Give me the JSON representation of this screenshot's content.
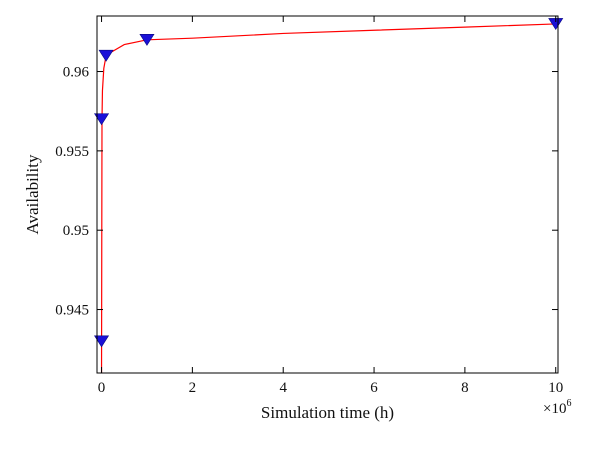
{
  "chart_data": {
    "type": "line",
    "title": "",
    "xlabel": "Simulation time (h)",
    "ylabel": "Availability",
    "x_multiplier": {
      "base": "×10",
      "exponent": "6"
    },
    "xlim": [
      -0.1,
      10.05
    ],
    "ylim": [
      0.941,
      0.9635
    ],
    "x_ticks": [
      {
        "value": 0,
        "label": "0"
      },
      {
        "value": 2,
        "label": "2"
      },
      {
        "value": 4,
        "label": "4"
      },
      {
        "value": 6,
        "label": "6"
      },
      {
        "value": 8,
        "label": "8"
      },
      {
        "value": 10,
        "label": "10"
      }
    ],
    "y_ticks": [
      {
        "value": 0.945,
        "label": "0.945"
      },
      {
        "value": 0.95,
        "label": "0.95"
      },
      {
        "value": 0.955,
        "label": "0.955"
      },
      {
        "value": 0.96,
        "label": "0.96"
      }
    ],
    "grid": false,
    "series": [
      {
        "line_color": "#ff0000",
        "marker_color": "#1a10d8",
        "marker": "triangle-down",
        "x": [
          0,
          0.001,
          0.01,
          0.02,
          0.05,
          0.1,
          0.2,
          0.5,
          1,
          2,
          4,
          6,
          8,
          10
        ],
        "y": [
          0.941,
          0.943,
          0.957,
          0.9588,
          0.9602,
          0.961,
          0.9612,
          0.9617,
          0.962,
          0.9621,
          0.9624,
          0.9626,
          0.9628,
          0.963
        ],
        "marker_x": [
          0,
          0,
          0.1,
          1,
          10
        ],
        "marker_y": [
          0.943,
          0.957,
          0.961,
          0.962,
          0.963
        ]
      }
    ]
  }
}
